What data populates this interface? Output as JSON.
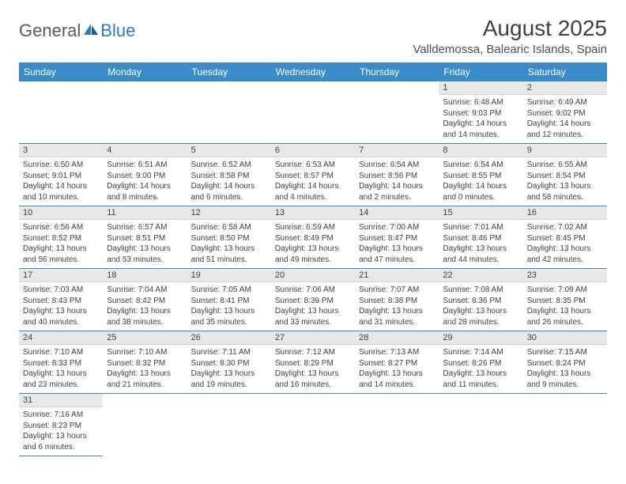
{
  "logo": {
    "general": "General",
    "blue": "Blue"
  },
  "title": "August 2025",
  "location": "Valldemossa, Balearic Islands, Spain",
  "colors": {
    "header_bg": "#3b8bc9",
    "header_text": "#ffffff",
    "daynum_bg": "#e8e8e8",
    "cell_border": "#3b8bc9",
    "text": "#404040",
    "logo_gray": "#5a5a5a",
    "logo_blue": "#2f7bbf",
    "background": "#ffffff"
  },
  "typography": {
    "title_fontsize": 28,
    "location_fontsize": 15,
    "dayheader_fontsize": 12,
    "cell_fontsize": 10,
    "font_family": "Arial"
  },
  "day_headers": [
    "Sunday",
    "Monday",
    "Tuesday",
    "Wednesday",
    "Thursday",
    "Friday",
    "Saturday"
  ],
  "weeks": [
    [
      null,
      null,
      null,
      null,
      null,
      {
        "n": "1",
        "sr": "Sunrise: 6:48 AM",
        "ss": "Sunset: 9:03 PM",
        "dl1": "Daylight: 14 hours",
        "dl2": "and 14 minutes."
      },
      {
        "n": "2",
        "sr": "Sunrise: 6:49 AM",
        "ss": "Sunset: 9:02 PM",
        "dl1": "Daylight: 14 hours",
        "dl2": "and 12 minutes."
      }
    ],
    [
      {
        "n": "3",
        "sr": "Sunrise: 6:50 AM",
        "ss": "Sunset: 9:01 PM",
        "dl1": "Daylight: 14 hours",
        "dl2": "and 10 minutes."
      },
      {
        "n": "4",
        "sr": "Sunrise: 6:51 AM",
        "ss": "Sunset: 9:00 PM",
        "dl1": "Daylight: 14 hours",
        "dl2": "and 8 minutes."
      },
      {
        "n": "5",
        "sr": "Sunrise: 6:52 AM",
        "ss": "Sunset: 8:58 PM",
        "dl1": "Daylight: 14 hours",
        "dl2": "and 6 minutes."
      },
      {
        "n": "6",
        "sr": "Sunrise: 6:53 AM",
        "ss": "Sunset: 8:57 PM",
        "dl1": "Daylight: 14 hours",
        "dl2": "and 4 minutes."
      },
      {
        "n": "7",
        "sr": "Sunrise: 6:54 AM",
        "ss": "Sunset: 8:56 PM",
        "dl1": "Daylight: 14 hours",
        "dl2": "and 2 minutes."
      },
      {
        "n": "8",
        "sr": "Sunrise: 6:54 AM",
        "ss": "Sunset: 8:55 PM",
        "dl1": "Daylight: 14 hours",
        "dl2": "and 0 minutes."
      },
      {
        "n": "9",
        "sr": "Sunrise: 6:55 AM",
        "ss": "Sunset: 8:54 PM",
        "dl1": "Daylight: 13 hours",
        "dl2": "and 58 minutes."
      }
    ],
    [
      {
        "n": "10",
        "sr": "Sunrise: 6:56 AM",
        "ss": "Sunset: 8:52 PM",
        "dl1": "Daylight: 13 hours",
        "dl2": "and 56 minutes."
      },
      {
        "n": "11",
        "sr": "Sunrise: 6:57 AM",
        "ss": "Sunset: 8:51 PM",
        "dl1": "Daylight: 13 hours",
        "dl2": "and 53 minutes."
      },
      {
        "n": "12",
        "sr": "Sunrise: 6:58 AM",
        "ss": "Sunset: 8:50 PM",
        "dl1": "Daylight: 13 hours",
        "dl2": "and 51 minutes."
      },
      {
        "n": "13",
        "sr": "Sunrise: 6:59 AM",
        "ss": "Sunset: 8:49 PM",
        "dl1": "Daylight: 13 hours",
        "dl2": "and 49 minutes."
      },
      {
        "n": "14",
        "sr": "Sunrise: 7:00 AM",
        "ss": "Sunset: 8:47 PM",
        "dl1": "Daylight: 13 hours",
        "dl2": "and 47 minutes."
      },
      {
        "n": "15",
        "sr": "Sunrise: 7:01 AM",
        "ss": "Sunset: 8:46 PM",
        "dl1": "Daylight: 13 hours",
        "dl2": "and 44 minutes."
      },
      {
        "n": "16",
        "sr": "Sunrise: 7:02 AM",
        "ss": "Sunset: 8:45 PM",
        "dl1": "Daylight: 13 hours",
        "dl2": "and 42 minutes."
      }
    ],
    [
      {
        "n": "17",
        "sr": "Sunrise: 7:03 AM",
        "ss": "Sunset: 8:43 PM",
        "dl1": "Daylight: 13 hours",
        "dl2": "and 40 minutes."
      },
      {
        "n": "18",
        "sr": "Sunrise: 7:04 AM",
        "ss": "Sunset: 8:42 PM",
        "dl1": "Daylight: 13 hours",
        "dl2": "and 38 minutes."
      },
      {
        "n": "19",
        "sr": "Sunrise: 7:05 AM",
        "ss": "Sunset: 8:41 PM",
        "dl1": "Daylight: 13 hours",
        "dl2": "and 35 minutes."
      },
      {
        "n": "20",
        "sr": "Sunrise: 7:06 AM",
        "ss": "Sunset: 8:39 PM",
        "dl1": "Daylight: 13 hours",
        "dl2": "and 33 minutes."
      },
      {
        "n": "21",
        "sr": "Sunrise: 7:07 AM",
        "ss": "Sunset: 8:38 PM",
        "dl1": "Daylight: 13 hours",
        "dl2": "and 31 minutes."
      },
      {
        "n": "22",
        "sr": "Sunrise: 7:08 AM",
        "ss": "Sunset: 8:36 PM",
        "dl1": "Daylight: 13 hours",
        "dl2": "and 28 minutes."
      },
      {
        "n": "23",
        "sr": "Sunrise: 7:09 AM",
        "ss": "Sunset: 8:35 PM",
        "dl1": "Daylight: 13 hours",
        "dl2": "and 26 minutes."
      }
    ],
    [
      {
        "n": "24",
        "sr": "Sunrise: 7:10 AM",
        "ss": "Sunset: 8:33 PM",
        "dl1": "Daylight: 13 hours",
        "dl2": "and 23 minutes."
      },
      {
        "n": "25",
        "sr": "Sunrise: 7:10 AM",
        "ss": "Sunset: 8:32 PM",
        "dl1": "Daylight: 13 hours",
        "dl2": "and 21 minutes."
      },
      {
        "n": "26",
        "sr": "Sunrise: 7:11 AM",
        "ss": "Sunset: 8:30 PM",
        "dl1": "Daylight: 13 hours",
        "dl2": "and 19 minutes."
      },
      {
        "n": "27",
        "sr": "Sunrise: 7:12 AM",
        "ss": "Sunset: 8:29 PM",
        "dl1": "Daylight: 13 hours",
        "dl2": "and 16 minutes."
      },
      {
        "n": "28",
        "sr": "Sunrise: 7:13 AM",
        "ss": "Sunset: 8:27 PM",
        "dl1": "Daylight: 13 hours",
        "dl2": "and 14 minutes."
      },
      {
        "n": "29",
        "sr": "Sunrise: 7:14 AM",
        "ss": "Sunset: 8:26 PM",
        "dl1": "Daylight: 13 hours",
        "dl2": "and 11 minutes."
      },
      {
        "n": "30",
        "sr": "Sunrise: 7:15 AM",
        "ss": "Sunset: 8:24 PM",
        "dl1": "Daylight: 13 hours",
        "dl2": "and 9 minutes."
      }
    ],
    [
      {
        "n": "31",
        "sr": "Sunrise: 7:16 AM",
        "ss": "Sunset: 8:23 PM",
        "dl1": "Daylight: 13 hours",
        "dl2": "and 6 minutes."
      },
      null,
      null,
      null,
      null,
      null,
      null
    ]
  ]
}
